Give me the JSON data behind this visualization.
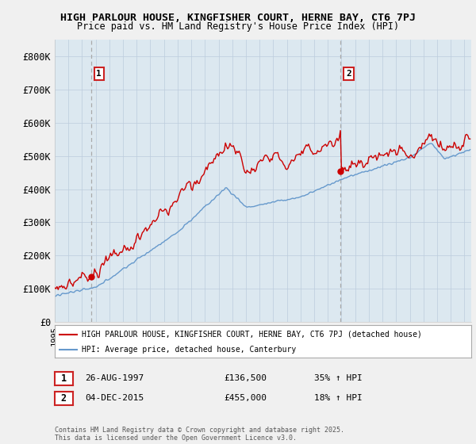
{
  "title_line1": "HIGH PARLOUR HOUSE, KINGFISHER COURT, HERNE BAY, CT6 7PJ",
  "title_line2": "Price paid vs. HM Land Registry's House Price Index (HPI)",
  "red_color": "#cc0000",
  "blue_color": "#6699cc",
  "dashed_color": "#aaaaaa",
  "plot_bg_color": "#dce8f0",
  "background_color": "#f0f0f0",
  "legend_bg": "#ffffff",
  "transaction1_date": 1997.65,
  "transaction1_price": 136500,
  "transaction1_label": "1",
  "transaction2_date": 2015.92,
  "transaction2_price": 455000,
  "transaction2_label": "2",
  "legend_label_red": "HIGH PARLOUR HOUSE, KINGFISHER COURT, HERNE BAY, CT6 7PJ (detached house)",
  "legend_label_blue": "HPI: Average price, detached house, Canterbury",
  "table_row1": [
    "1",
    "26-AUG-1997",
    "£136,500",
    "35% ↑ HPI"
  ],
  "table_row2": [
    "2",
    "04-DEC-2015",
    "£455,000",
    "18% ↑ HPI"
  ],
  "footnote": "Contains HM Land Registry data © Crown copyright and database right 2025.\nThis data is licensed under the Open Government Licence v3.0.",
  "yticks": [
    0,
    100000,
    200000,
    300000,
    400000,
    500000,
    600000,
    700000,
    800000
  ],
  "ytick_labels": [
    "£0",
    "£100K",
    "£200K",
    "£300K",
    "£400K",
    "£500K",
    "£600K",
    "£700K",
    "£800K"
  ],
  "xmin": 1995.0,
  "xmax": 2025.5,
  "ymin": 0,
  "ymax": 850000
}
